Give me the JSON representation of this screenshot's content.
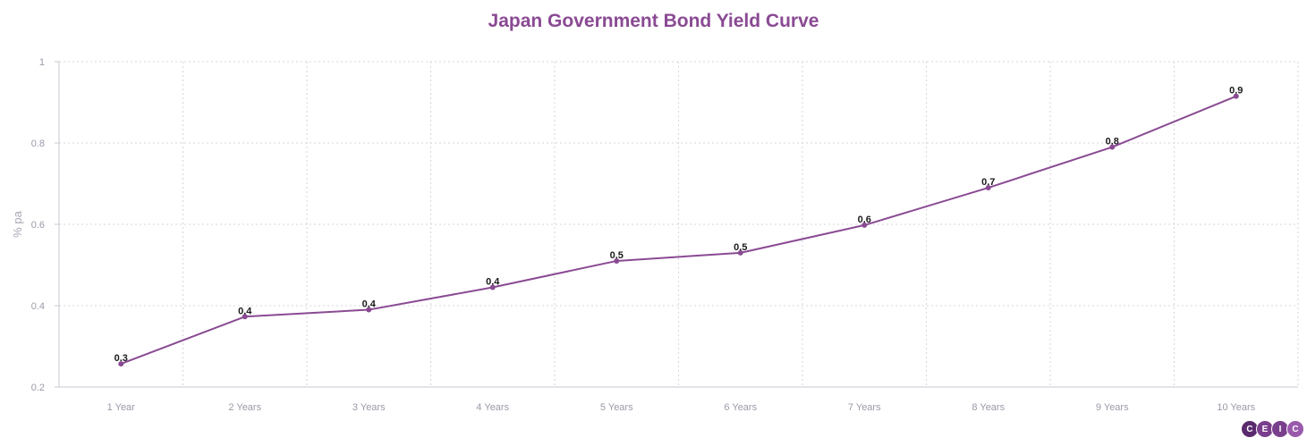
{
  "chart_data": {
    "type": "line",
    "title": "Japan Government Bond Yield Curve",
    "xlabel": "",
    "ylabel": "% pa",
    "categories": [
      "1 Year",
      "2 Years",
      "3 Years",
      "4 Years",
      "5 Years",
      "6 Years",
      "7 Years",
      "8 Years",
      "9 Years",
      "10 Years"
    ],
    "series": [
      {
        "values": [
          0.257,
          0.373,
          0.39,
          0.445,
          0.51,
          0.53,
          0.598,
          0.69,
          0.79,
          0.915
        ],
        "data_labels": [
          "0.3",
          "0.4",
          "0.4",
          "0.4",
          "0.5",
          "0.5",
          "0.6",
          "0.7",
          "0.8",
          "0.9"
        ],
        "color": "#8a4a93"
      }
    ],
    "ylim": [
      0.2,
      1
    ],
    "yticks": [
      0.2,
      0.4,
      0.6,
      0.8,
      1
    ],
    "ytick_labels": [
      "0.2",
      "0.4",
      "0.6",
      "0.8",
      "1"
    ],
    "grid": true,
    "legend": "none"
  },
  "logo": {
    "letters": [
      "C",
      "E",
      "I",
      "C"
    ],
    "colors": [
      "#5b2a6e",
      "#7a3f8c",
      "#7a3f8c",
      "#9a5aac"
    ]
  }
}
